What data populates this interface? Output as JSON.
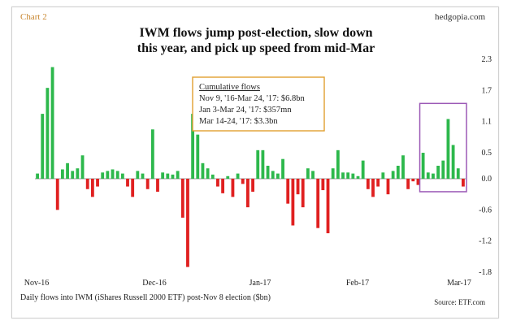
{
  "header": {
    "tag": "Chart 2",
    "brand": "hedgopia.com",
    "title_line1": "IWM flows jump post-election, slow down",
    "title_line2": "this year, and pick up speed from mid-Mar"
  },
  "annotation": {
    "heading": "Cumulative flows",
    "lines": [
      "Nov 9, '16-Mar 24, '17: $6.8bn",
      "Jan 3-Mar 24, '17: $357mn",
      "Mar 14-24, '17: $3.3bn"
    ]
  },
  "footer": {
    "caption": "Daily flows into IWM (iShares Russell 2000 ETF) post-Nov 8 election ($bn)",
    "source": "Source: ETF.com"
  },
  "colors": {
    "positive": "#2db84c",
    "negative": "#e02020",
    "annotation_border": "#e0a030",
    "highlight_border": "#9b59b6"
  },
  "chart_data": {
    "type": "bar",
    "title": "IWM flows jump post-election, slow down this year, and pick up speed from mid-Mar",
    "ylim": [
      -1.8,
      2.3
    ],
    "y_ticks": [
      2.3,
      1.7,
      1.1,
      0.5,
      0.0,
      -0.6,
      -1.2,
      -1.8
    ],
    "x_tick_labels": [
      "Nov-16",
      "Dec-16",
      "Jan-17",
      "Feb-17",
      "Mar-17"
    ],
    "values": [
      0.1,
      1.25,
      1.75,
      2.15,
      -0.6,
      0.18,
      0.3,
      0.15,
      0.2,
      0.45,
      -0.2,
      -0.35,
      -0.15,
      0.12,
      0.15,
      0.18,
      0.15,
      0.1,
      -0.15,
      -0.35,
      0.15,
      0.1,
      -0.2,
      0.95,
      -0.25,
      0.12,
      0.1,
      0.08,
      0.15,
      -0.75,
      -1.7,
      1.25,
      0.85,
      0.3,
      0.2,
      0.08,
      -0.15,
      -0.28,
      0.05,
      -0.35,
      0.1,
      -0.1,
      -0.55,
      -0.25,
      0.55,
      0.55,
      0.25,
      0.15,
      0.1,
      0.38,
      -0.48,
      -0.9,
      -0.3,
      -0.55,
      0.2,
      0.15,
      -0.95,
      -0.22,
      -1.05,
      0.2,
      0.55,
      0.12,
      0.12,
      0.1,
      0.05,
      0.35,
      -0.2,
      -0.35,
      -0.15,
      0.12,
      -0.3,
      0.15,
      0.25,
      0.45,
      -0.2,
      -0.05,
      -0.12,
      0.5,
      0.12,
      0.1,
      0.25,
      0.35,
      1.15,
      0.65,
      0.2,
      -0.15
    ],
    "highlight": {
      "start_index": 77,
      "end_index": 85
    }
  }
}
